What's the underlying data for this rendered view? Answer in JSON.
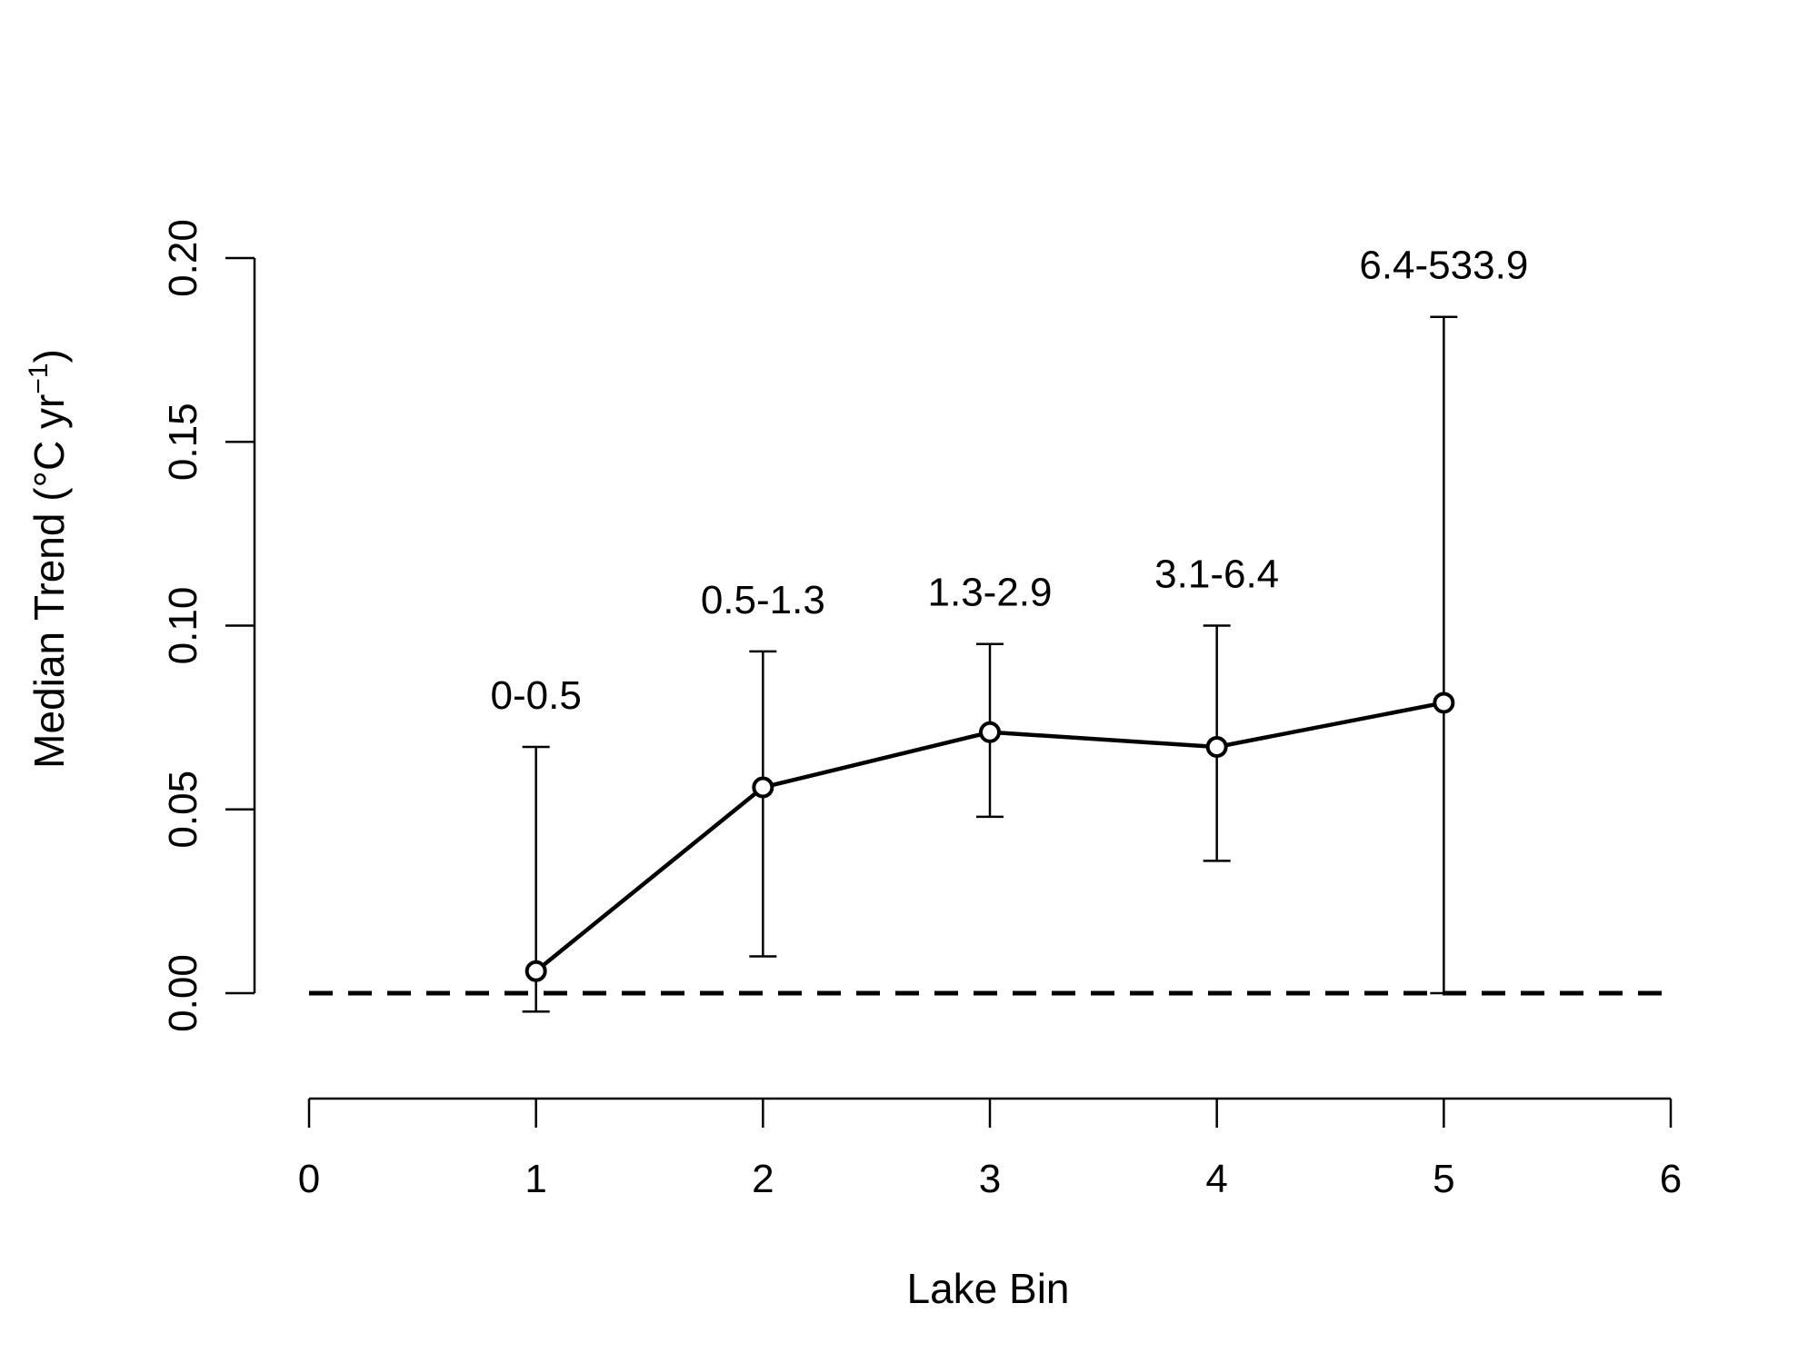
{
  "chart_data": {
    "type": "line",
    "xlabel": "Lake Bin",
    "ylabel": {
      "main": "Median Trend (",
      "degree": "°",
      "unit": "C yr",
      "superscript": "−1",
      "close": ")"
    },
    "xlim": [
      0,
      6
    ],
    "ylim": [
      0,
      0.2
    ],
    "x_ticks": [
      "0",
      "1",
      "2",
      "3",
      "4",
      "5",
      "6"
    ],
    "y_ticks": [
      "0.00",
      "0.05",
      "0.10",
      "0.15",
      "0.20"
    ],
    "grid": false,
    "reference_line": {
      "y": 0,
      "style": "dashed"
    },
    "points": [
      {
        "x": 1,
        "y": 0.006,
        "err_low": -0.005,
        "err_high": 0.067,
        "label": "0-0.5"
      },
      {
        "x": 2,
        "y": 0.056,
        "err_low": 0.01,
        "err_high": 0.093,
        "label": "0.5-1.3"
      },
      {
        "x": 3,
        "y": 0.071,
        "err_low": 0.048,
        "err_high": 0.095,
        "label": "1.3-2.9"
      },
      {
        "x": 4,
        "y": 0.067,
        "err_low": 0.036,
        "err_high": 0.1,
        "label": "3.1-6.4"
      },
      {
        "x": 5,
        "y": 0.079,
        "err_low": 0.0,
        "err_high": 0.184,
        "label": "6.4-533.9"
      }
    ]
  }
}
